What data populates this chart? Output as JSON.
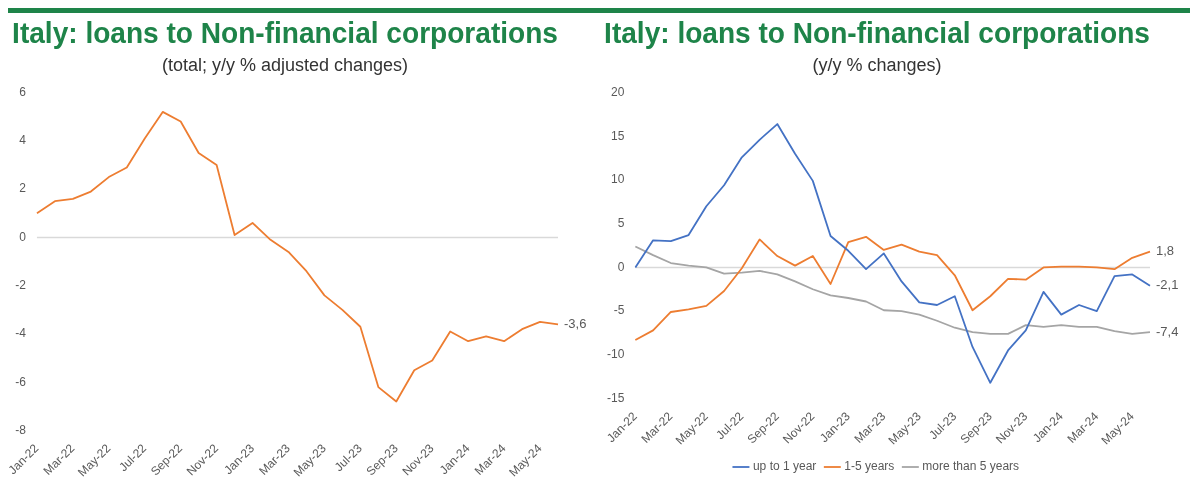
{
  "chart_data": [
    {
      "type": "line",
      "title": "Italy: loans to Non-financial corporations",
      "subtitle": "(total; y/y % adjusted changes)",
      "categories": [
        "Jan-22",
        null,
        "Mar-22",
        null,
        "May-22",
        null,
        "Jul-22",
        null,
        "Sep-22",
        null,
        "Nov-22",
        null,
        "Jan-23",
        null,
        "Mar-23",
        null,
        "May-23",
        null,
        "Jul-23",
        null,
        "Sep-23",
        null,
        "Nov-23",
        null,
        "Jan-24",
        null,
        "Mar-24",
        null,
        "May-24",
        null
      ],
      "values": [
        1.0,
        1.5,
        1.6,
        1.9,
        2.5,
        2.9,
        4.1,
        5.2,
        4.8,
        3.5,
        3.0,
        0.1,
        0.6,
        -0.1,
        -0.6,
        -1.4,
        -2.4,
        -3.0,
        -3.7,
        -6.2,
        -6.8,
        -5.5,
        -5.1,
        -3.9,
        -4.3,
        -4.1,
        -4.3,
        -3.8,
        -3.5,
        -3.6
      ],
      "value_labels": [
        null,
        null,
        null,
        null,
        null,
        null,
        null,
        null,
        null,
        null,
        null,
        null,
        null,
        null,
        null,
        null,
        null,
        null,
        null,
        null,
        null,
        null,
        null,
        null,
        null,
        null,
        null,
        null,
        null,
        "-3,6"
      ],
      "color": "#ed7d31",
      "ref_lines": [
        {
          "axis": "y",
          "value": 0,
          "color": "#d9d9d9"
        }
      ],
      "ylim": [
        -8,
        6
      ],
      "yticks": [
        -8,
        -6,
        -4,
        -2,
        0,
        2,
        4,
        6
      ],
      "grid": false,
      "legend": false,
      "marker": "none"
    },
    {
      "type": "line",
      "title": "Italy: loans to Non-financial corporations",
      "subtitle": "(y/y % changes)",
      "categories": [
        "Jan-22",
        null,
        "Mar-22",
        null,
        "May-22",
        null,
        "Jul-22",
        null,
        "Sep-22",
        null,
        "Nov-22",
        null,
        "Jan-23",
        null,
        "Mar-23",
        null,
        "May-23",
        null,
        "Jul-23",
        null,
        "Sep-23",
        null,
        "Nov-23",
        null,
        "Jan-24",
        null,
        "Mar-24",
        null,
        "May-24",
        null
      ],
      "series": [
        {
          "name": "up to 1 year",
          "color": "#4472c4",
          "values": [
            0,
            3.1,
            3.0,
            3.7,
            7.0,
            9.4,
            12.6,
            14.6,
            16.4,
            13.0,
            9.9,
            3.6,
            1.9,
            -0.2,
            1.6,
            -1.6,
            -4.0,
            -4.3,
            -3.3,
            -9.1,
            -13.2,
            -9.5,
            -7.2,
            -2.8,
            -5.4,
            -4.3,
            -5.0,
            -1.0,
            -0.8,
            -2.1
          ],
          "value_labels": [
            null,
            null,
            null,
            null,
            null,
            null,
            null,
            null,
            null,
            null,
            null,
            null,
            null,
            null,
            null,
            null,
            null,
            null,
            null,
            null,
            null,
            null,
            null,
            null,
            null,
            null,
            null,
            null,
            null,
            "-2,1"
          ]
        },
        {
          "name": "1-5 years",
          "color": "#ed7d31",
          "values": [
            -8.3,
            -7.2,
            -5.1,
            -4.8,
            -4.4,
            -2.7,
            -0.1,
            3.2,
            1.3,
            0.2,
            1.3,
            -1.9,
            2.9,
            3.5,
            2.0,
            2.6,
            1.8,
            1.4,
            -0.9,
            -4.9,
            -3.3,
            -1.3,
            -1.4,
            0.0,
            0.1,
            0.1,
            0.0,
            -0.2,
            1.1,
            1.8
          ],
          "value_labels": [
            null,
            null,
            null,
            null,
            null,
            null,
            null,
            null,
            null,
            null,
            null,
            null,
            null,
            null,
            null,
            null,
            null,
            null,
            null,
            null,
            null,
            null,
            null,
            null,
            null,
            null,
            null,
            null,
            null,
            "1,8"
          ]
        },
        {
          "name": "more than 5 years",
          "color": "#a5a5a5",
          "values": [
            2.4,
            1.4,
            0.5,
            0.2,
            0.0,
            -0.7,
            -0.6,
            -0.4,
            -0.8,
            -1.6,
            -2.5,
            -3.2,
            -3.5,
            -3.9,
            -4.9,
            -5.0,
            -5.4,
            -6.1,
            -6.9,
            -7.4,
            -7.6,
            -7.6,
            -6.6,
            -6.8,
            -6.6,
            -6.8,
            -6.8,
            -7.3,
            -7.6,
            -7.4
          ],
          "value_labels": [
            null,
            null,
            null,
            null,
            null,
            null,
            null,
            null,
            null,
            null,
            null,
            null,
            null,
            null,
            null,
            null,
            null,
            null,
            null,
            null,
            null,
            null,
            null,
            null,
            null,
            null,
            null,
            null,
            null,
            "-7,4"
          ]
        }
      ],
      "ref_lines": [
        {
          "axis": "y",
          "value": 0,
          "color": "#d9d9d9"
        }
      ],
      "ylim": [
        -15,
        20
      ],
      "yticks": [
        -15,
        -10,
        -5,
        0,
        5,
        10,
        15,
        20
      ],
      "grid": false,
      "legend": "bottom",
      "marker": "none"
    }
  ]
}
